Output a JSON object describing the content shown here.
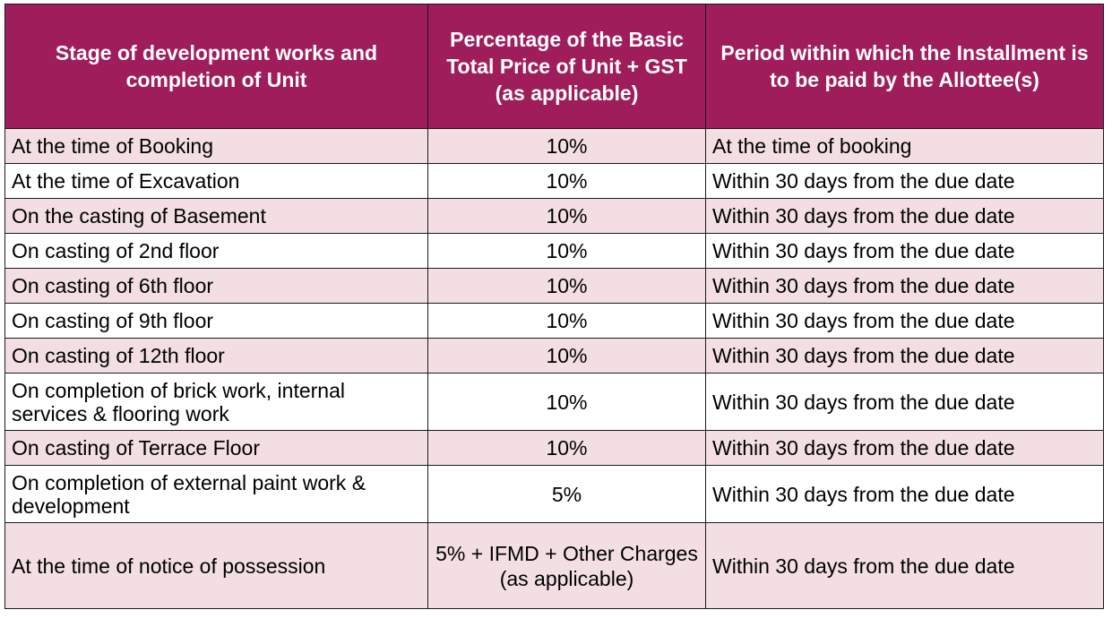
{
  "table": {
    "headers": [
      "Stage of development works and completion of Unit",
      "Percentage of the Basic Total Price of Unit + GST (as applicable)",
      "Period within which the Installment is to be paid by the Allottee(s)"
    ],
    "rows": [
      {
        "stage": "At the time of Booking",
        "percentage": "10%",
        "period": "At the time of booking"
      },
      {
        "stage": "At the time of Excavation",
        "percentage": "10%",
        "period": "Within 30 days from the due date"
      },
      {
        "stage": "On the casting of Basement",
        "percentage": "10%",
        "period": "Within 30 days from the due date"
      },
      {
        "stage": "On casting of 2nd floor",
        "percentage": "10%",
        "period": "Within 30 days from the due date"
      },
      {
        "stage": "On casting of 6th floor",
        "percentage": "10%",
        "period": "Within 30 days from the due date"
      },
      {
        "stage": "On casting of 9th floor",
        "percentage": "10%",
        "period": "Within 30 days from the due date"
      },
      {
        "stage": "On casting of 12th floor",
        "percentage": "10%",
        "period": "Within 30 days from the due date"
      },
      {
        "stage": "On completion of  brick work, internal services & flooring work",
        "percentage": "10%",
        "period": "Within 30 days from the due date"
      },
      {
        "stage": "On casting of Terrace Floor",
        "percentage": "10%",
        "period": "Within 30 days from the due date"
      },
      {
        "stage": "On completion of external paint work & development",
        "percentage": "5%",
        "period": "Within 30 days from the due date"
      },
      {
        "stage": "At the time of notice of possession",
        "percentage": "5% + IFMD + Other Charges (as applicable)",
        "period": "Within 30 days from the due date"
      }
    ]
  },
  "colors": {
    "header_bg": "#a01d5c",
    "header_text": "#ffffff",
    "row_shade": "#f3dfe3",
    "row_plain": "#ffffff"
  }
}
